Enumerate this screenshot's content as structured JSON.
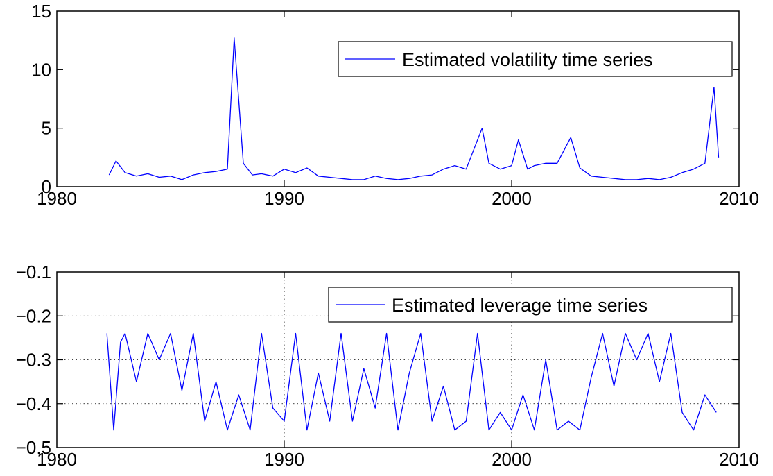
{
  "chart_data": [
    {
      "type": "line",
      "title": "",
      "xlabel": "",
      "ylabel": "",
      "xlim": [
        1980,
        2010
      ],
      "ylim": [
        0,
        15
      ],
      "xticks": [
        "1980",
        "1990",
        "2000",
        "2010"
      ],
      "yticks": [
        "0",
        "5",
        "10",
        "15"
      ],
      "grid": false,
      "legend_position": "top-right",
      "series": [
        {
          "name": "Estimated volatility time series",
          "color": "#0000ff",
          "x": [
            1982.3,
            1982.6,
            1983.0,
            1983.5,
            1984.0,
            1984.5,
            1985.0,
            1985.5,
            1986.0,
            1986.5,
            1987.0,
            1987.5,
            1987.8,
            1988.2,
            1988.6,
            1989.0,
            1989.5,
            1990.0,
            1990.5,
            1991.0,
            1991.5,
            1992.0,
            1992.5,
            1993.0,
            1993.5,
            1994.0,
            1994.5,
            1995.0,
            1995.5,
            1996.0,
            1996.5,
            1997.0,
            1997.5,
            1998.0,
            1998.7,
            1999.0,
            1999.5,
            2000.0,
            2000.3,
            2000.7,
            2001.0,
            2001.5,
            2002.0,
            2002.6,
            2003.0,
            2003.5,
            2004.0,
            2004.5,
            2005.0,
            2005.5,
            2006.0,
            2006.5,
            2007.0,
            2007.5,
            2008.0,
            2008.5,
            2008.9,
            2009.1
          ],
          "values": [
            1.0,
            2.2,
            1.2,
            0.9,
            1.1,
            0.8,
            0.9,
            0.6,
            1.0,
            1.2,
            1.3,
            1.5,
            12.7,
            2.0,
            1.0,
            1.1,
            0.9,
            1.5,
            1.2,
            1.6,
            0.9,
            0.8,
            0.7,
            0.6,
            0.6,
            0.9,
            0.7,
            0.6,
            0.7,
            0.9,
            1.0,
            1.5,
            1.8,
            1.5,
            5.0,
            2.0,
            1.5,
            1.8,
            4.0,
            1.5,
            1.8,
            2.0,
            2.0,
            4.2,
            1.6,
            0.9,
            0.8,
            0.7,
            0.6,
            0.6,
            0.7,
            0.6,
            0.8,
            1.2,
            1.5,
            2.0,
            8.5,
            2.5
          ]
        }
      ]
    },
    {
      "type": "line",
      "title": "",
      "xlabel": "",
      "ylabel": "",
      "xlim": [
        1980,
        2010
      ],
      "ylim": [
        -0.5,
        -0.1
      ],
      "xticks": [
        "1980",
        "1990",
        "2000",
        "2010"
      ],
      "yticks": [
        "−0.5",
        "−0.4",
        "−0.3",
        "−0.2",
        "−0.1"
      ],
      "grid": true,
      "legend_position": "top-right",
      "series": [
        {
          "name": "Estimated leverage time series",
          "color": "#0000ff",
          "x": [
            1982.2,
            1982.5,
            1982.8,
            1983.0,
            1983.5,
            1984.0,
            1984.5,
            1985.0,
            1985.5,
            1986.0,
            1986.5,
            1987.0,
            1987.5,
            1988.0,
            1988.5,
            1989.0,
            1989.5,
            1990.0,
            1990.5,
            1991.0,
            1991.5,
            1992.0,
            1992.5,
            1993.0,
            1993.5,
            1994.0,
            1994.5,
            1995.0,
            1995.5,
            1996.0,
            1996.5,
            1997.0,
            1997.5,
            1998.0,
            1998.5,
            1999.0,
            1999.5,
            2000.0,
            2000.5,
            2001.0,
            2001.5,
            2002.0,
            2002.5,
            2003.0,
            2003.5,
            2004.0,
            2004.5,
            2005.0,
            2005.5,
            2006.0,
            2006.5,
            2007.0,
            2007.5,
            2008.0,
            2008.5,
            2009.0
          ],
          "values": [
            -0.24,
            -0.46,
            -0.26,
            -0.24,
            -0.35,
            -0.24,
            -0.3,
            -0.24,
            -0.37,
            -0.24,
            -0.44,
            -0.35,
            -0.46,
            -0.38,
            -0.46,
            -0.24,
            -0.41,
            -0.44,
            -0.24,
            -0.46,
            -0.33,
            -0.44,
            -0.24,
            -0.44,
            -0.32,
            -0.41,
            -0.24,
            -0.46,
            -0.33,
            -0.24,
            -0.44,
            -0.36,
            -0.46,
            -0.44,
            -0.24,
            -0.46,
            -0.42,
            -0.46,
            -0.38,
            -0.46,
            -0.3,
            -0.46,
            -0.44,
            -0.46,
            -0.34,
            -0.24,
            -0.36,
            -0.24,
            -0.3,
            -0.24,
            -0.35,
            -0.24,
            -0.42,
            -0.46,
            -0.38,
            -0.42
          ]
        }
      ]
    }
  ]
}
